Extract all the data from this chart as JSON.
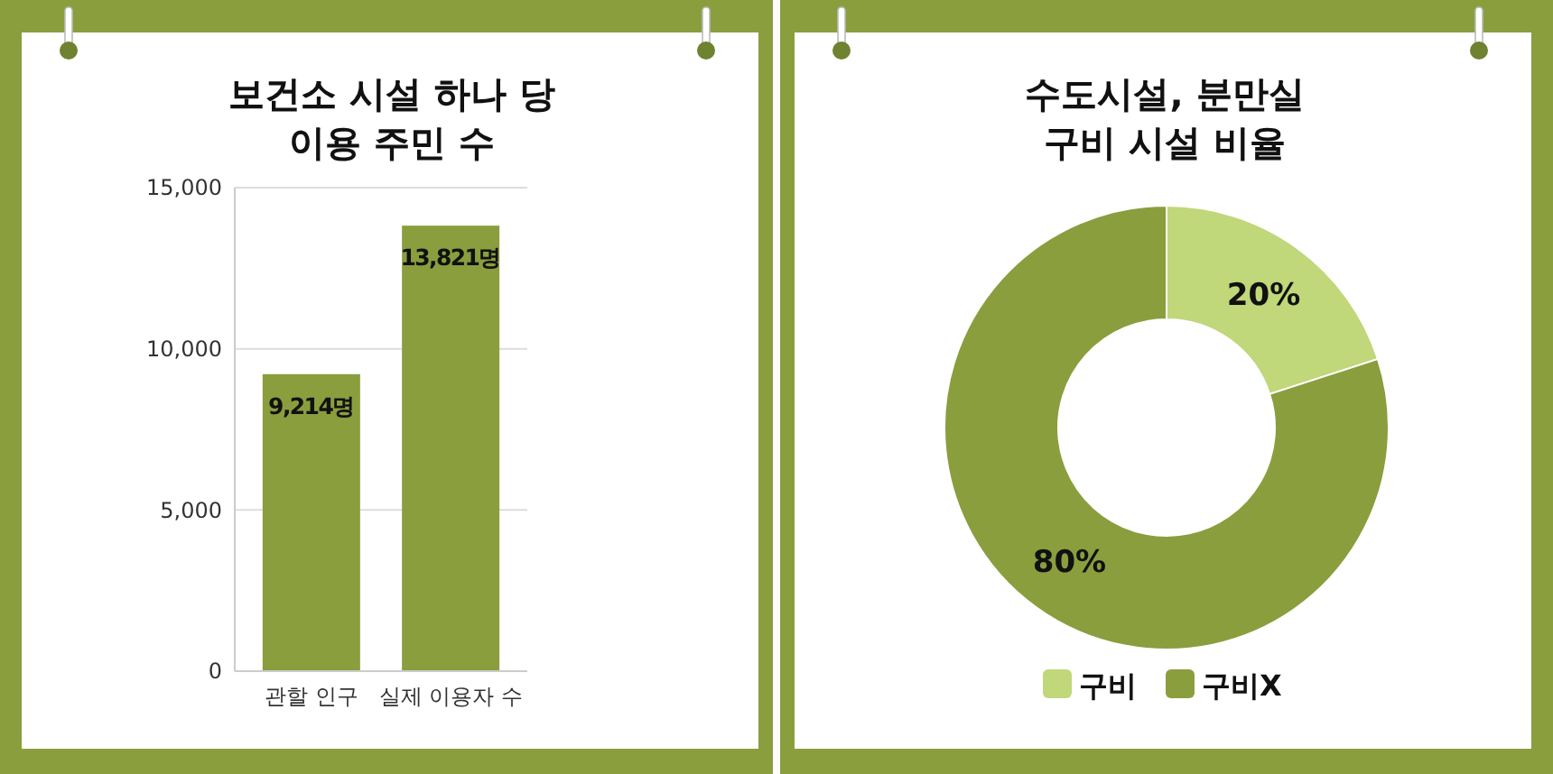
{
  "chart_data": [
    {
      "type": "bar",
      "title": "보건소 시설 하나 당\n이용 주민 수",
      "categories": [
        "관할 인구",
        "실제 이용자 수"
      ],
      "values": [
        9214,
        13821
      ],
      "color": "#8a9e3e",
      "value_labels": [
        "9,214명",
        "13,821명"
      ],
      "ylim": [
        0,
        15000
      ],
      "yticks": [
        {
          "value": 0,
          "label": "0"
        },
        {
          "value": 5000,
          "label": "5,000"
        },
        {
          "value": 10000,
          "label": "10,000"
        },
        {
          "value": 15000,
          "label": "15,000"
        }
      ],
      "grid": "y"
    },
    {
      "type": "donut",
      "title": "수도시설, 분만실\n구비 시설 비율",
      "categories": [
        "구비",
        "구비X"
      ],
      "values": [
        20,
        80
      ],
      "colors": [
        "#c0d77a",
        "#8a9e3e"
      ],
      "value_labels": [
        "20%",
        "80%"
      ],
      "legend": "bottom"
    }
  ]
}
